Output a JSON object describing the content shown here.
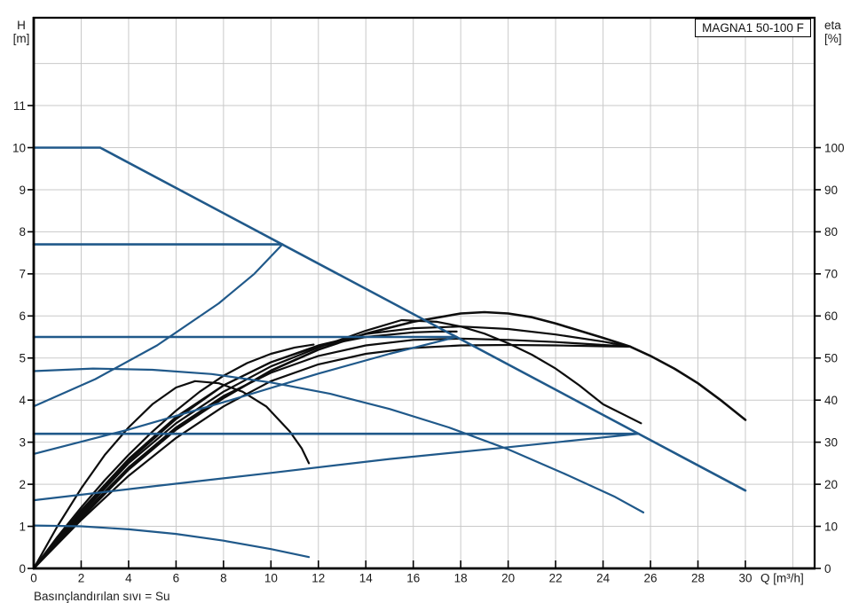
{
  "title": "MAGNA1 50-100 F",
  "footnote": "Basınçlandırılan sıvı = Su",
  "axis_left": {
    "label_line1": "H",
    "label_line2": "[m]",
    "tick_values": [
      0,
      1,
      2,
      3,
      4,
      5,
      6,
      7,
      8,
      9,
      10,
      11
    ]
  },
  "axis_right": {
    "label_line1": "eta",
    "label_line2": "[%]",
    "tick_values": [
      0,
      10,
      20,
      30,
      40,
      50,
      60,
      70,
      80,
      90,
      100
    ]
  },
  "axis_x": {
    "label": "Q [m³/h]",
    "tick_values": [
      0,
      2,
      4,
      6,
      8,
      10,
      12,
      14,
      16,
      18,
      20,
      22,
      24,
      26,
      28,
      30
    ]
  },
  "grid": {
    "x_values": [
      2,
      4,
      6,
      8,
      10,
      12,
      14,
      16,
      18,
      20,
      22,
      24,
      26,
      28,
      30,
      32
    ],
    "h_values": [
      1,
      2,
      3,
      4,
      5,
      6,
      7,
      8,
      9,
      10,
      11,
      12
    ]
  },
  "colors": {
    "curve_blue": "#20598a",
    "curve_black": "#0d0d0d",
    "grid": "#c9c9c9",
    "axis": "#000000",
    "text": "#1a1a1a"
  },
  "chart_data": {
    "type": "line",
    "title": "MAGNA1 50-100 F",
    "xlabel": "Q [m³/h]",
    "ylabel_left": "H [m]",
    "ylabel_right": "eta [%]",
    "x_range": [
      0,
      32.9
    ],
    "h_range": [
      0,
      13.1
    ],
    "eta_range": [
      0,
      130.9
    ],
    "grid": true,
    "legend": false,
    "series": [
      {
        "name": "eta-max-speed",
        "axis": "eta",
        "color": "black",
        "width": 2.6,
        "points": [
          [
            0,
            0
          ],
          [
            2,
            12
          ],
          [
            4,
            23.5
          ],
          [
            6,
            33
          ],
          [
            8,
            40.5
          ],
          [
            10,
            47
          ],
          [
            12,
            52
          ],
          [
            14,
            55.8
          ],
          [
            16,
            58.6
          ],
          [
            18,
            60.6
          ],
          [
            19,
            60.9
          ],
          [
            20,
            60.6
          ],
          [
            21,
            59.7
          ],
          [
            22,
            58.2
          ],
          [
            23,
            56.5
          ],
          [
            24,
            54.8
          ],
          [
            25.15,
            52.7
          ],
          [
            26,
            50.5
          ],
          [
            27,
            47.5
          ],
          [
            28,
            44
          ],
          [
            29,
            39.8
          ],
          [
            30,
            35.3
          ]
        ]
      },
      {
        "name": "eta-speed-2",
        "axis": "eta",
        "color": "black",
        "width": 2.2,
        "points": [
          [
            0,
            0
          ],
          [
            2,
            13
          ],
          [
            4,
            25
          ],
          [
            6,
            34.5
          ],
          [
            8,
            42
          ],
          [
            10,
            48
          ],
          [
            12,
            52.5
          ],
          [
            14,
            56.5
          ],
          [
            15.5,
            59
          ],
          [
            17,
            58.6
          ],
          [
            18,
            57.5
          ],
          [
            19,
            55.8
          ],
          [
            20,
            53.5
          ],
          [
            21,
            50.8
          ],
          [
            22,
            47.5
          ],
          [
            23,
            43.5
          ],
          [
            24,
            39
          ],
          [
            25.6,
            34.5
          ]
        ]
      },
      {
        "name": "eta-min-speed",
        "axis": "eta",
        "color": "black",
        "width": 2.2,
        "points": [
          [
            0,
            0
          ],
          [
            1,
            10
          ],
          [
            2,
            19
          ],
          [
            3,
            27
          ],
          [
            4,
            33.5
          ],
          [
            5,
            39
          ],
          [
            6,
            43
          ],
          [
            6.8,
            44.5
          ],
          [
            7.8,
            44
          ],
          [
            8.8,
            42
          ],
          [
            9.8,
            38.5
          ],
          [
            10.8,
            32.5
          ],
          [
            11.3,
            28.5
          ],
          [
            11.6,
            25
          ]
        ]
      },
      {
        "name": "eta-control-1",
        "axis": "eta",
        "color": "black",
        "width": 2.2,
        "points": [
          [
            0,
            0
          ],
          [
            2,
            12.5
          ],
          [
            4,
            24
          ],
          [
            6,
            33.5
          ],
          [
            8,
            41
          ],
          [
            10,
            46.5
          ],
          [
            12,
            50.5
          ],
          [
            14,
            53
          ],
          [
            16,
            54.3
          ],
          [
            18,
            54.6
          ],
          [
            20,
            54.3
          ],
          [
            22,
            53.8
          ],
          [
            24,
            53.1
          ],
          [
            25.15,
            52.7
          ]
        ]
      },
      {
        "name": "eta-control-2",
        "axis": "eta",
        "color": "black",
        "width": 2.2,
        "points": [
          [
            0,
            0
          ],
          [
            2,
            13.8
          ],
          [
            4,
            26
          ],
          [
            6,
            36
          ],
          [
            8,
            43.5
          ],
          [
            10,
            49
          ],
          [
            12,
            53
          ],
          [
            14,
            55.7
          ],
          [
            16,
            57.1
          ],
          [
            18,
            57.5
          ],
          [
            20,
            56.9
          ],
          [
            22,
            55.6
          ],
          [
            24,
            53.9
          ],
          [
            25.15,
            52.7
          ]
        ]
      },
      {
        "name": "eta-control-3",
        "axis": "eta",
        "color": "black",
        "width": 2.2,
        "points": [
          [
            0,
            0
          ],
          [
            2,
            11.5
          ],
          [
            4,
            22
          ],
          [
            6,
            31
          ],
          [
            8,
            38.5
          ],
          [
            10,
            44.5
          ],
          [
            12,
            48.5
          ],
          [
            14,
            51
          ],
          [
            16,
            52.4
          ],
          [
            18,
            53
          ],
          [
            20,
            53.1
          ],
          [
            22,
            53
          ],
          [
            24,
            52.8
          ],
          [
            25.15,
            52.7
          ]
        ]
      },
      {
        "name": "eta-setpoint-7-7",
        "axis": "eta",
        "color": "black",
        "width": 2.2,
        "points": [
          [
            0,
            0
          ],
          [
            1,
            7.5
          ],
          [
            2,
            14.5
          ],
          [
            3,
            21
          ],
          [
            4,
            27
          ],
          [
            5,
            32.5
          ],
          [
            6,
            37.5
          ],
          [
            7,
            42
          ],
          [
            8,
            45.8
          ],
          [
            9,
            48.8
          ],
          [
            10,
            51
          ],
          [
            11,
            52.5
          ],
          [
            11.8,
            53.2
          ]
        ]
      },
      {
        "name": "eta-setpoint-5-5",
        "axis": "eta",
        "color": "black",
        "width": 2.2,
        "points": [
          [
            0,
            0
          ],
          [
            2,
            13.5
          ],
          [
            4,
            25.5
          ],
          [
            6,
            35.5
          ],
          [
            8,
            43.5
          ],
          [
            10,
            49
          ],
          [
            12,
            52.8
          ],
          [
            14,
            55
          ],
          [
            16,
            56.1
          ],
          [
            17,
            56.3
          ],
          [
            17.83,
            56.3
          ]
        ]
      },
      {
        "name": "max-speed-curve",
        "axis": "H",
        "color": "blue",
        "width": 2.6,
        "points": [
          [
            0,
            10
          ],
          [
            2.8,
            10
          ],
          [
            30,
            1.85
          ]
        ]
      },
      {
        "name": "const-pressure-7-7",
        "axis": "H",
        "color": "blue",
        "width": 2.6,
        "points": [
          [
            0,
            7.7
          ],
          [
            10.48,
            7.7
          ]
        ]
      },
      {
        "name": "const-pressure-5-5",
        "axis": "H",
        "color": "blue",
        "width": 2.6,
        "points": [
          [
            0,
            5.5
          ],
          [
            17.83,
            5.5
          ]
        ]
      },
      {
        "name": "const-pressure-3-2",
        "axis": "H",
        "color": "blue",
        "width": 2.6,
        "points": [
          [
            0,
            3.2
          ],
          [
            25.5,
            3.2
          ]
        ]
      },
      {
        "name": "prop-pressure-7-7",
        "axis": "H",
        "color": "blue",
        "width": 2.2,
        "points": [
          [
            0,
            3.85
          ],
          [
            2.6,
            4.5
          ],
          [
            5.2,
            5.3
          ],
          [
            7.8,
            6.3
          ],
          [
            9.3,
            7.0
          ],
          [
            10.48,
            7.7
          ]
        ]
      },
      {
        "name": "prop-pressure-5-5",
        "axis": "H",
        "color": "blue",
        "width": 2.2,
        "points": [
          [
            0,
            2.72
          ],
          [
            4,
            3.3
          ],
          [
            8,
            3.95
          ],
          [
            12,
            4.63
          ],
          [
            15,
            5.1
          ],
          [
            17.83,
            5.5
          ]
        ]
      },
      {
        "name": "prop-pressure-3-2",
        "axis": "H",
        "color": "blue",
        "width": 2.2,
        "points": [
          [
            0,
            1.62
          ],
          [
            5,
            1.95
          ],
          [
            10,
            2.27
          ],
          [
            15,
            2.6
          ],
          [
            20,
            2.88
          ],
          [
            25.5,
            3.2
          ]
        ]
      },
      {
        "name": "speed-curve-mid",
        "axis": "H",
        "color": "blue",
        "width": 2.2,
        "points": [
          [
            0,
            4.69
          ],
          [
            2.5,
            4.75
          ],
          [
            5,
            4.72
          ],
          [
            7.5,
            4.62
          ],
          [
            10,
            4.42
          ],
          [
            12.5,
            4.15
          ],
          [
            15,
            3.79
          ],
          [
            17.5,
            3.35
          ],
          [
            20,
            2.83
          ],
          [
            22.5,
            2.22
          ],
          [
            24.5,
            1.7
          ],
          [
            25.7,
            1.33
          ]
        ]
      },
      {
        "name": "min-speed-curve",
        "axis": "H",
        "color": "blue",
        "width": 2.2,
        "points": [
          [
            0,
            1.02
          ],
          [
            2,
            1.0
          ],
          [
            4,
            0.93
          ],
          [
            6,
            0.82
          ],
          [
            8,
            0.66
          ],
          [
            10,
            0.46
          ],
          [
            11.6,
            0.27
          ]
        ]
      }
    ]
  }
}
